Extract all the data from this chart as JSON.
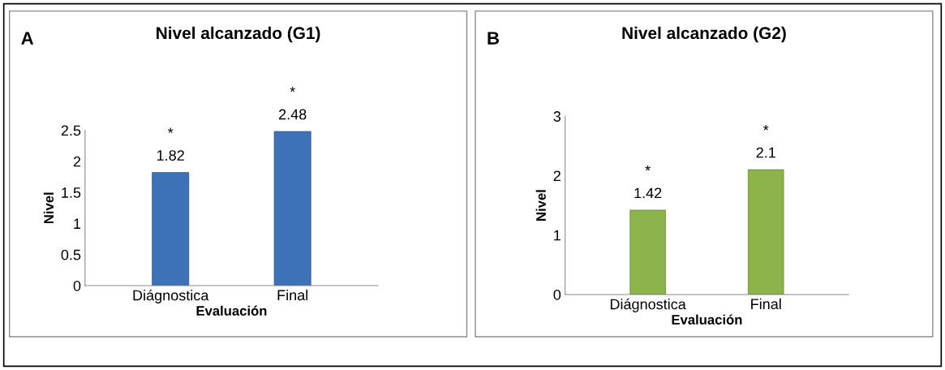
{
  "chart_data": [
    {
      "type": "bar",
      "title": "Nivel alcanzado (G1)",
      "xlabel": "Evaluación",
      "ylabel": "Nivel",
      "categories": [
        "Diágnostica",
        "Final"
      ],
      "values": [
        1.82,
        2.48
      ],
      "color": "#3d72b8",
      "ylim": [
        0,
        2.5
      ],
      "yticks": [
        0,
        0.5,
        1,
        1.5,
        2,
        2.5
      ],
      "data_labels": true,
      "grid": false,
      "legend": false,
      "annotations": [
        "A",
        "*",
        "*"
      ]
    },
    {
      "type": "bar",
      "title": "Nivel alcanzado (G2)",
      "xlabel": "Evaluación",
      "ylabel": "Nivel",
      "categories": [
        "Diágnostica",
        "Final"
      ],
      "values": [
        1.42,
        2.1
      ],
      "color": "#8db44a",
      "ylim": [
        0,
        3
      ],
      "yticks": [
        0,
        1,
        2,
        3
      ],
      "data_labels": true,
      "grid": false,
      "legend": false,
      "annotations": [
        "B",
        "*",
        "*"
      ]
    }
  ]
}
